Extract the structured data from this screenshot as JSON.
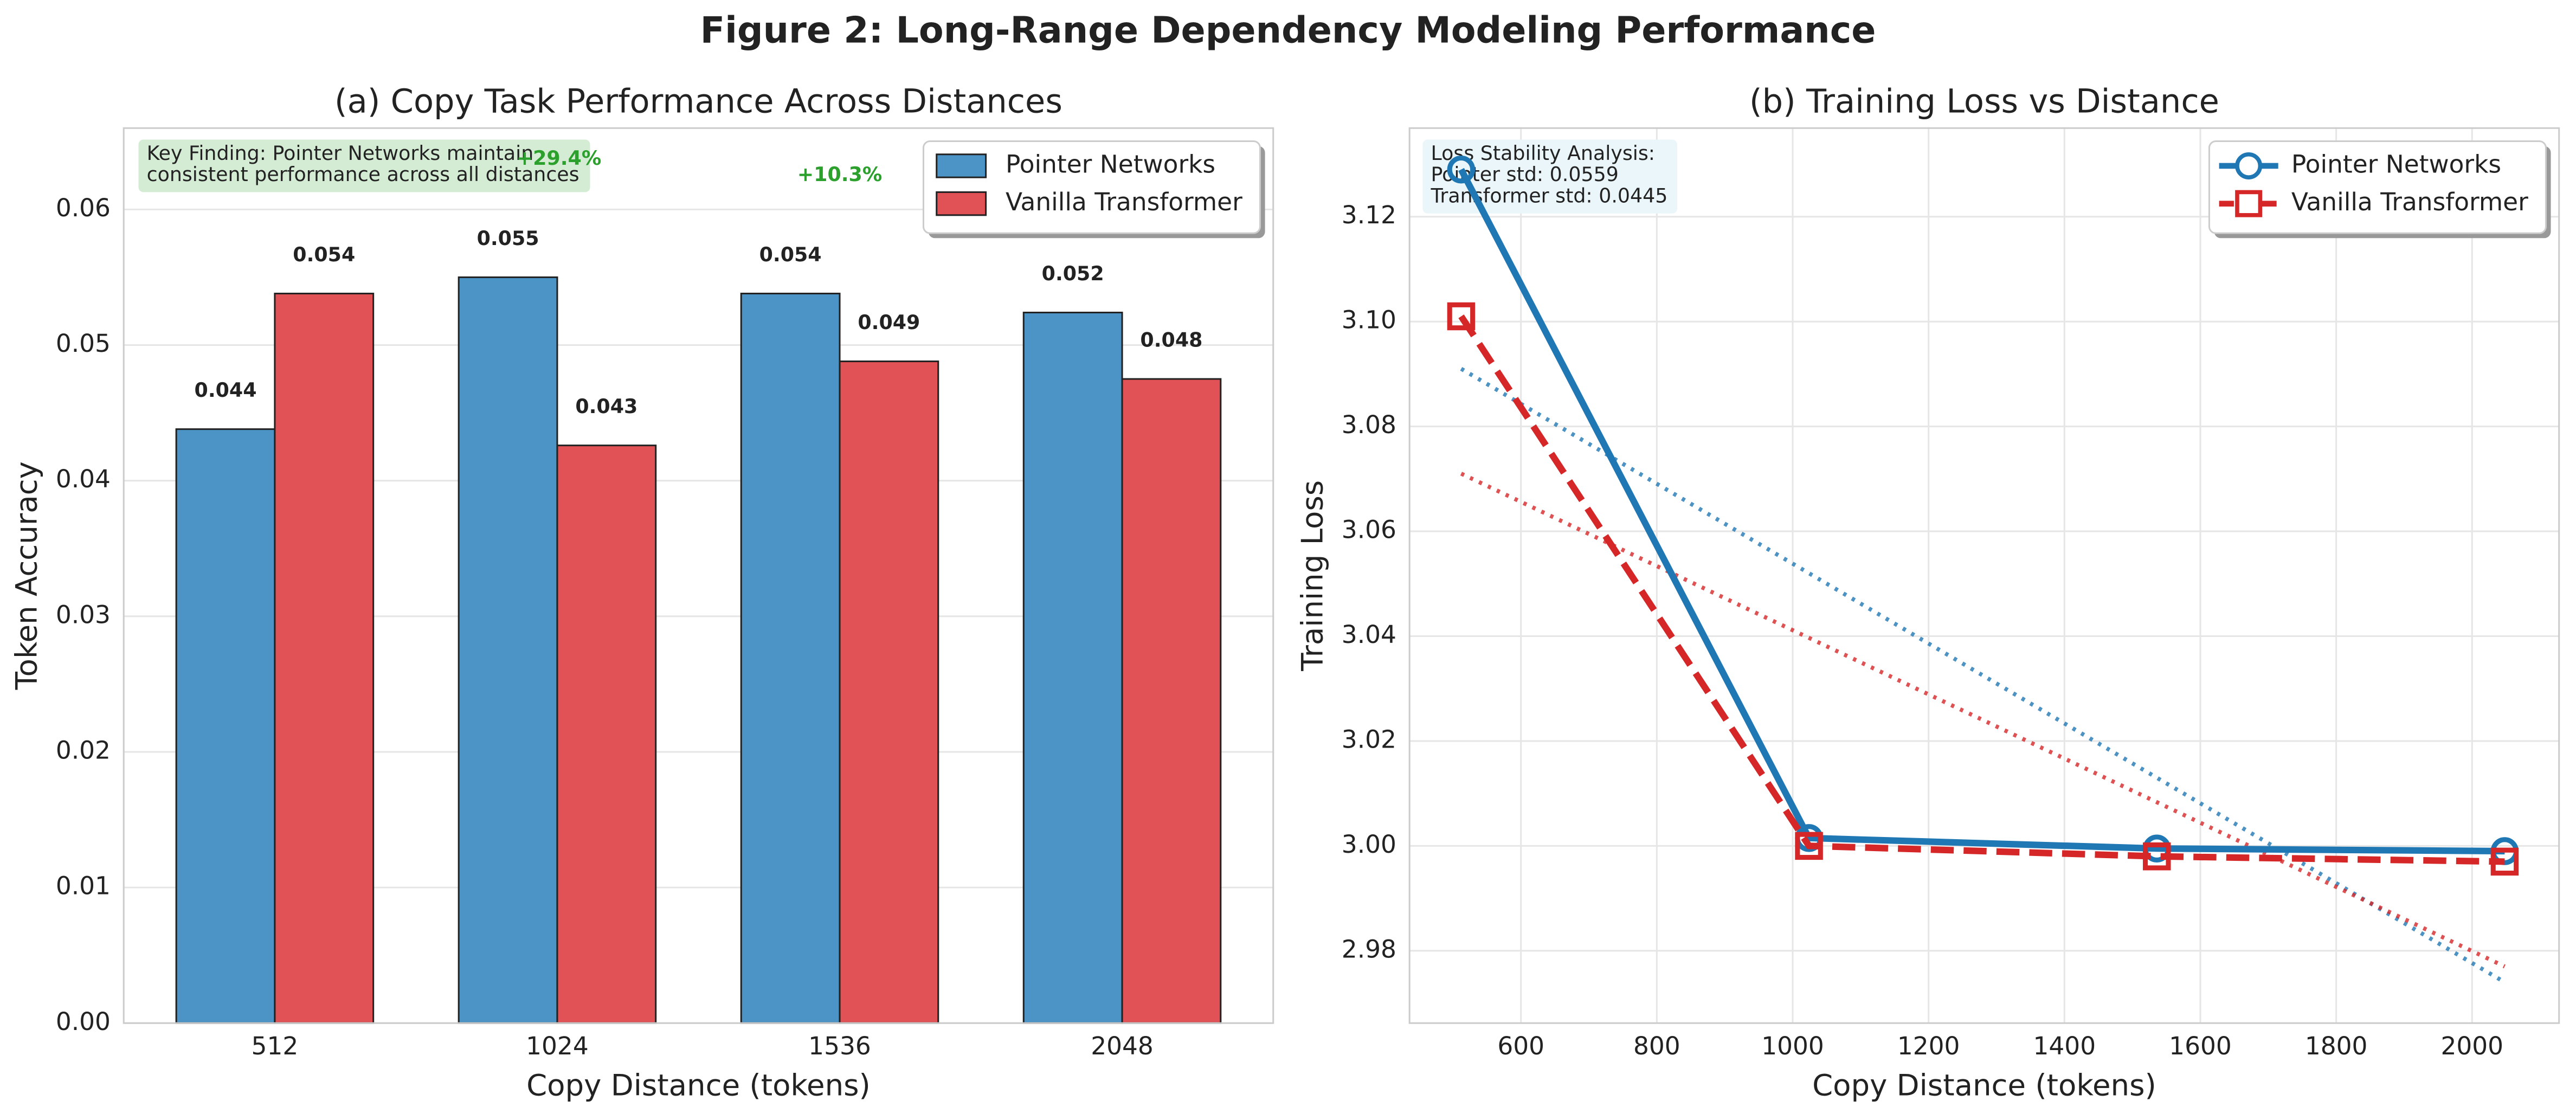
{
  "title": "Figure 2: Long-Range Dependency Modeling Performance",
  "chart_data": [
    {
      "type": "bar",
      "title": "(a) Copy Task Performance Across Distances",
      "xlabel": "Copy Distance (tokens)",
      "ylabel": "Token Accuracy",
      "categories": [
        "512",
        "1024",
        "1536",
        "2048"
      ],
      "series": [
        {
          "name": "Pointer Networks",
          "color": "#4d94c6",
          "values": [
            0.0438,
            0.055,
            0.0538,
            0.0524
          ],
          "value_labels": [
            "0.044",
            "0.055",
            "0.054",
            "0.052"
          ]
        },
        {
          "name": "Vanilla Transformer",
          "color": "#e05256",
          "values": [
            0.0538,
            0.0426,
            0.0488,
            0.0475
          ],
          "value_labels": [
            "0.054",
            "0.043",
            "0.049",
            "0.048"
          ]
        }
      ],
      "ylim": [
        0,
        0.066
      ],
      "yticks": [
        {
          "value": 0,
          "label": "0.00"
        },
        0.01,
        0.02,
        0.03,
        0.04,
        0.05,
        0.06
      ],
      "grid": true,
      "legend": "upper right",
      "annotations": [
        "+29.4%",
        "+10.3%"
      ],
      "note": [
        "Key Finding: Pointer Networks maintain",
        "consistent performance across all distances"
      ]
    },
    {
      "type": "line",
      "title": "(b) Training Loss vs Distance",
      "xlabel": "Copy Distance (tokens)",
      "ylabel": "Training Loss",
      "x": [
        512,
        1024,
        1536,
        2048
      ],
      "series": [
        {
          "name": "Pointer Networks",
          "color": "#1f77b4",
          "marker": "circle",
          "dash": false,
          "values": [
            3.129,
            3.0015,
            2.9995,
            2.999
          ]
        },
        {
          "name": "Vanilla Transformer",
          "color": "#d62728",
          "marker": "square",
          "dash": true,
          "values": [
            3.101,
            3.0,
            2.998,
            2.997
          ]
        }
      ],
      "trend_lines": [
        {
          "color": "#1f77b4",
          "x": [
            512,
            2048
          ],
          "values": [
            3.091,
            2.974
          ]
        },
        {
          "color": "#d62728",
          "x": [
            512,
            2048
          ],
          "values": [
            3.071,
            2.977
          ]
        }
      ],
      "xlim": [
        436,
        2128
      ],
      "xticks": [
        600,
        800,
        1000,
        1200,
        1400,
        1600,
        1800,
        2000
      ],
      "ylim": [
        2.9662,
        3.1369
      ],
      "yticks": [
        2.98,
        {
          "value": 3.0,
          "label": "3.00"
        },
        3.02,
        3.04,
        3.06,
        3.08,
        {
          "value": 3.1,
          "label": "3.10"
        },
        3.12
      ],
      "grid": true,
      "legend": "upper right",
      "note": [
        "Loss Stability Analysis:",
        "Pointer std: 0.0559",
        "Transformer std: 0.0445"
      ]
    }
  ]
}
